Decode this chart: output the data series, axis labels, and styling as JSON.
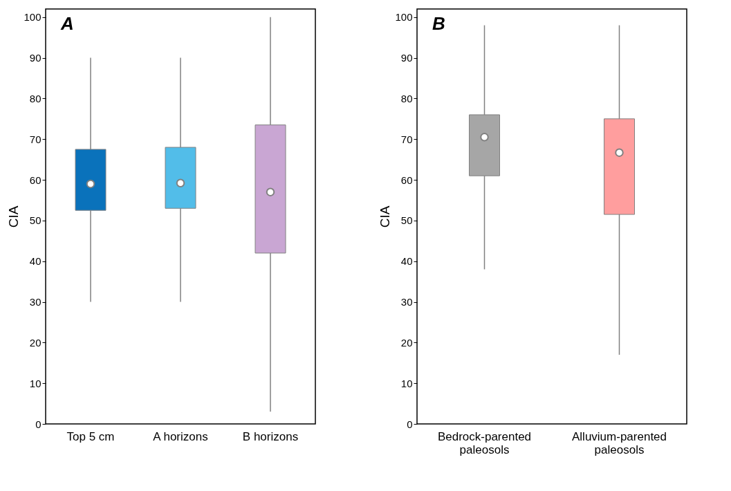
{
  "chart_data": [
    {
      "type": "box",
      "ylabel": "CIA",
      "annotations": [
        "A"
      ],
      "categories": [
        "Top 5 cm",
        "A horizons",
        "B horizons"
      ],
      "colors": [
        "#0a72bb",
        "#52bde9",
        "#c9a6d3"
      ],
      "boxes": [
        {
          "low": 30,
          "q1": 52.5,
          "median": 59,
          "q3": 67.5,
          "high": 90
        },
        {
          "low": 30,
          "q1": 53,
          "median": 59.2,
          "q3": 68,
          "high": 90
        },
        {
          "low": 3,
          "q1": 42,
          "median": 57,
          "q3": 73.5,
          "high": 100
        }
      ],
      "ylim": [
        0,
        102
      ],
      "yticks": [
        0,
        10,
        20,
        30,
        40,
        50,
        60,
        70,
        80,
        90,
        100
      ],
      "grid": false
    },
    {
      "type": "box",
      "ylabel": "CIA",
      "annotations": [
        "B"
      ],
      "categories": [
        "Bedrock-parented paleosols",
        "Alluvium-parented paleosols"
      ],
      "colors": [
        "#a6a6a6",
        "#ff9e9e"
      ],
      "boxes": [
        {
          "low": 38,
          "q1": 61,
          "median": 70.5,
          "q3": 76,
          "high": 98
        },
        {
          "low": 17,
          "q1": 51.5,
          "median": 66.7,
          "q3": 75,
          "high": 98
        }
      ],
      "ylim": [
        0,
        102
      ],
      "yticks": [
        0,
        10,
        20,
        30,
        40,
        50,
        60,
        70,
        80,
        90,
        100
      ],
      "grid": false
    }
  ]
}
